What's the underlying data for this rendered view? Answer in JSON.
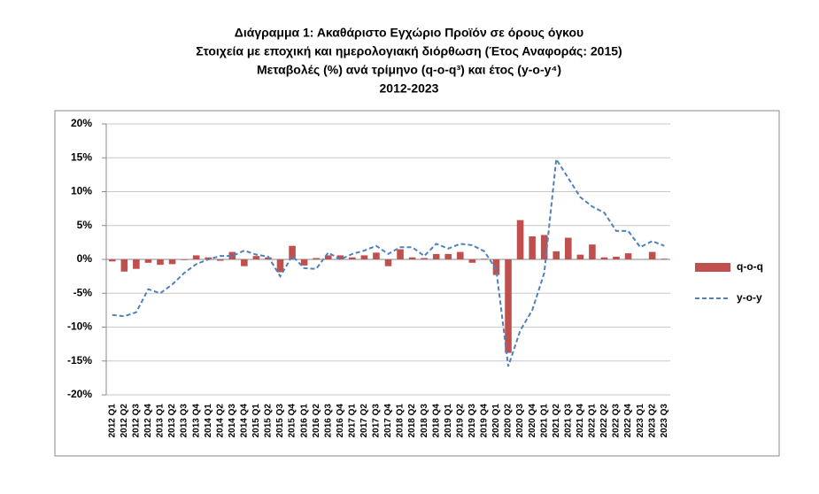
{
  "chart_data": {
    "type": "bar+line",
    "title": [
      "Διάγραμμα 1: Ακαθάριστο Εγχώριο Προϊόν σε όρους όγκου",
      "Στοιχεία με εποχική και ημερολογιακή διόρθωση (Έτος Αναφοράς: 2015)",
      "Μεταβολές (%) ανά τρίμηνο (q-o-q³) και έτος (y-o-y⁴)",
      "2012-2023"
    ],
    "categories": [
      "2012 Q1",
      "2012 Q2",
      "2012 Q3",
      "2012 Q4",
      "2013 Q1",
      "2013 Q2",
      "2013 Q3",
      "2013 Q4",
      "2014 Q1",
      "2014 Q2",
      "2014 Q3",
      "2014 Q4",
      "2015 Q1",
      "2015 Q2",
      "2015 Q3",
      "2015 Q4",
      "2016 Q1",
      "2016 Q2",
      "2016 Q3",
      "2016 Q4",
      "2017 Q1",
      "2017 Q2",
      "2017 Q3",
      "2017 Q4",
      "2018 Q1",
      "2018 Q2",
      "2018 Q3",
      "2018 Q4",
      "2019 Q1",
      "2019 Q2",
      "2019 Q3",
      "2019 Q4",
      "2020 Q1",
      "2020 Q2",
      "2020 Q3",
      "2020 Q4",
      "2021 Q1",
      "2021 Q2",
      "2021 Q3",
      "2021 Q4",
      "2022 Q1",
      "2022 Q2",
      "2022 Q3",
      "2022 Q4",
      "2023 Q1",
      "2023 Q2",
      "2023 Q3"
    ],
    "series": [
      {
        "name": "q-o-q",
        "type": "bar",
        "color": "#c0504d",
        "values": [
          -0.3,
          -1.8,
          -1.4,
          -0.5,
          -0.8,
          -0.7,
          -0.1,
          0.6,
          0.3,
          -0.2,
          1.1,
          -1.0,
          0.5,
          0.3,
          -1.9,
          2.0,
          -0.9,
          0.2,
          0.6,
          0.6,
          0.3,
          0.6,
          1.0,
          -1.0,
          1.5,
          0.3,
          0.2,
          0.8,
          0.8,
          1.1,
          -0.5,
          0.1,
          -2.3,
          -13.8,
          5.8,
          3.4,
          3.6,
          1.2,
          3.2,
          0.7,
          2.2,
          0.3,
          0.4,
          0.9,
          0.0,
          1.1,
          0.1
        ]
      },
      {
        "name": "y-o-y",
        "type": "line",
        "color": "#4f81bd",
        "dashed": true,
        "values": [
          -8.2,
          -8.4,
          -7.8,
          -4.4,
          -5.0,
          -3.7,
          -2.0,
          -0.7,
          0.0,
          0.5,
          0.5,
          1.3,
          0.7,
          0.4,
          -2.5,
          0.5,
          -1.3,
          -1.4,
          1.0,
          0.0,
          0.8,
          1.3,
          2.0,
          0.8,
          1.8,
          1.8,
          0.5,
          2.3,
          1.6,
          2.3,
          2.1,
          1.2,
          -1.5,
          -15.8,
          -10.5,
          -7.5,
          -2.0,
          14.8,
          12.0,
          9.2,
          7.8,
          6.9,
          4.2,
          4.2,
          1.8,
          2.7,
          2.0
        ]
      }
    ],
    "ylim": [
      -20,
      20
    ],
    "yticks": [
      {
        "value": -20,
        "label": "-20%"
      },
      {
        "value": -15,
        "label": "-15%"
      },
      {
        "value": -10,
        "label": "-10%"
      },
      {
        "value": -5,
        "label": "-5%"
      },
      {
        "value": 0,
        "label": "0%"
      },
      {
        "value": 5,
        "label": "5%"
      },
      {
        "value": 10,
        "label": "10%"
      },
      {
        "value": 15,
        "label": "15%"
      },
      {
        "value": 20,
        "label": "20%"
      }
    ],
    "grid": true,
    "legend": "right"
  }
}
